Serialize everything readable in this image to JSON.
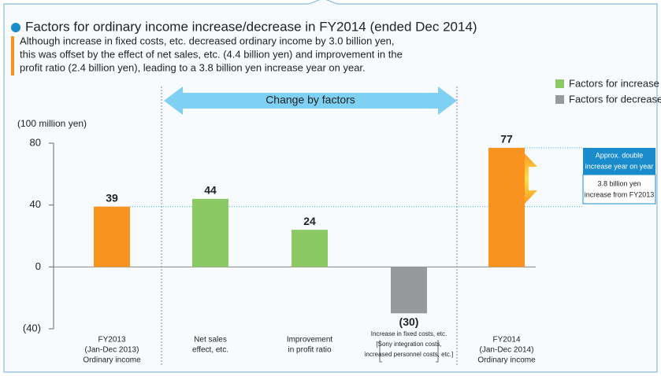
{
  "chart_data": {
    "type": "bar",
    "title": "Factors for ordinary income increase/decrease in FY2014 (ended Dec 2014)",
    "subtitle": [
      "Although increase in fixed costs, etc. decreased ordinary income by 3.0 billion yen,",
      "this was offset by the effect of net sales, etc. (4.4 billion yen) and improvement in the",
      "profit ratio (2.4 billion yen), leading to a 3.8 billion yen increase year on year."
    ],
    "y_label": "(100 million yen)",
    "categories": [
      [
        "FY2013",
        "(Jan-Dec 2013)",
        "Ordinary income"
      ],
      [
        "Net sales",
        "effect, etc."
      ],
      [
        "Improvement",
        "in profit ratio"
      ],
      [
        "Increase in fixed costs, etc.",
        "[Sony integration costs,",
        "increased personnel costs, etc.]"
      ],
      [
        "FY2014",
        "(Jan-Dec 2014)",
        "Ordinary income"
      ]
    ],
    "values": [
      39,
      44,
      24,
      -30,
      77
    ],
    "value_labels": [
      "39",
      "44",
      "24",
      "(30)",
      "77"
    ],
    "colors": [
      "#f7931e",
      "#8cc864",
      "#8cc864",
      "#98999b",
      "#f7931e"
    ],
    "legend": [
      {
        "name": "Factors for increase",
        "color": "#8cc864"
      },
      {
        "name": "Factors for decrease",
        "color": "#98999b"
      }
    ],
    "ylim": [
      -40,
      80
    ],
    "yticks": [
      {
        "value": -40,
        "label": "(40)"
      },
      0,
      40,
      80
    ],
    "annotations": {
      "range_arrow": "Change by factors",
      "box_top": [
        "Approx. double",
        "increase year on year"
      ],
      "box_bottom": [
        "3.8 billion yen",
        "increase from FY2013"
      ]
    }
  }
}
